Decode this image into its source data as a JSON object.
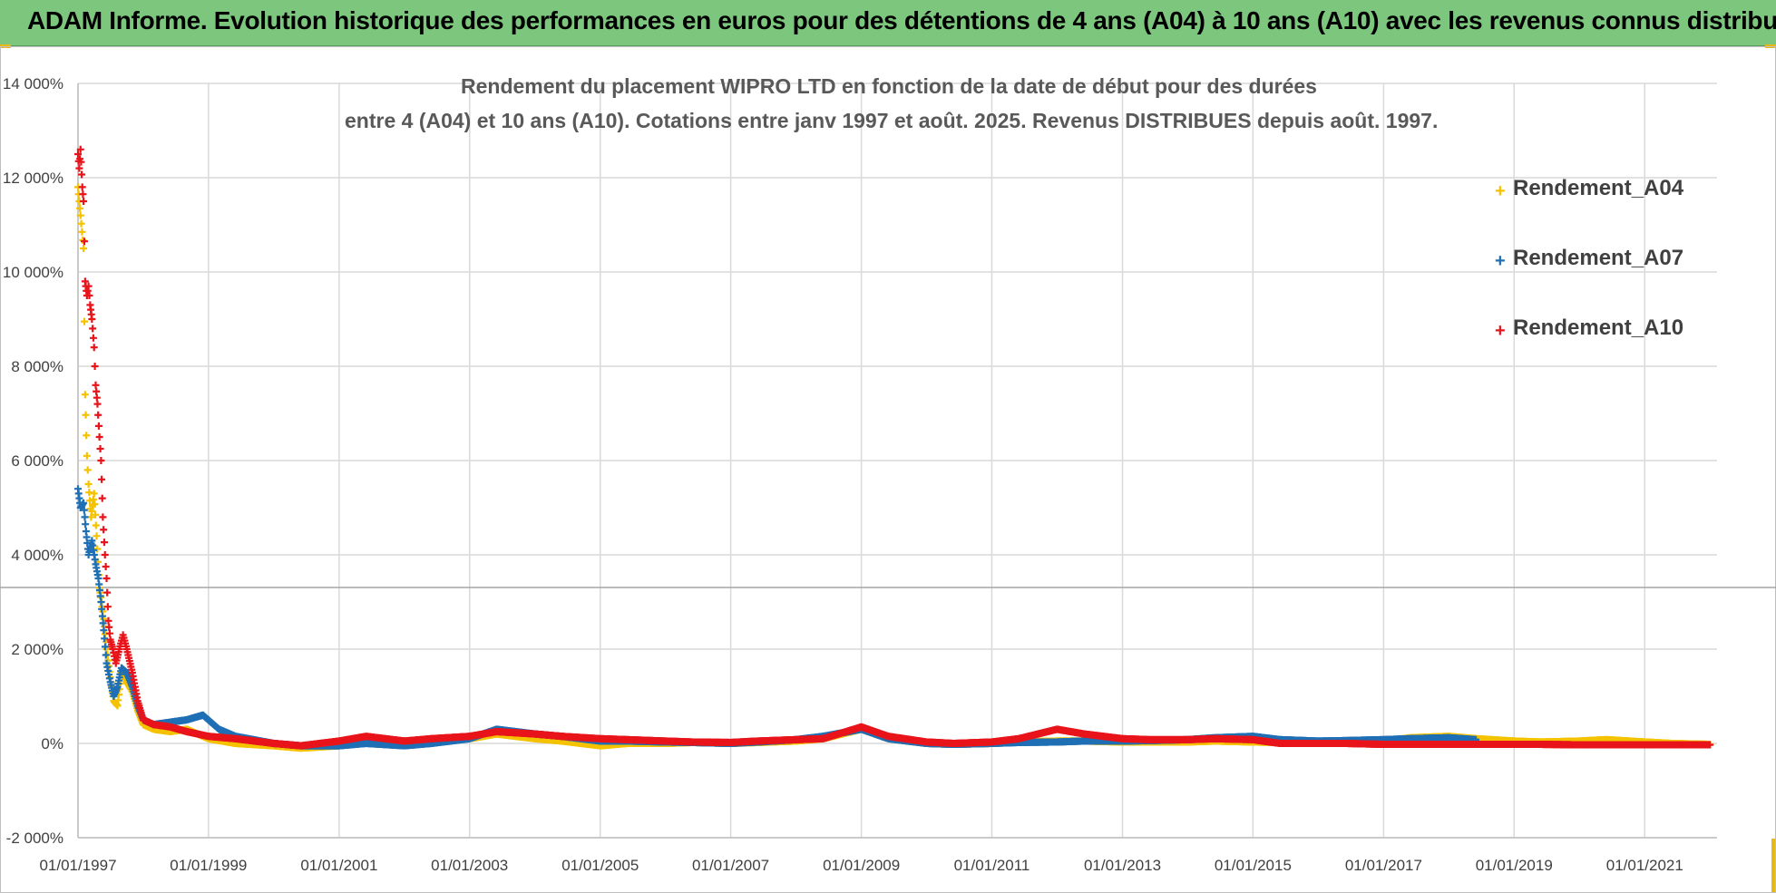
{
  "banner": {
    "title": "ADAM Informe. Evolution historique des performances en euros pour des détentions de 4 ans (A04) à 10 ans (A10) avec les revenus connus distribués"
  },
  "colors": {
    "banner_bg": "#7dc67e",
    "series_A04": "#f5c200",
    "series_A07": "#1f6fb5",
    "series_A10": "#e8141b",
    "grid": "#d9d9d9"
  },
  "chart_data": {
    "type": "scatter",
    "title_line1": "Rendement du placement WIPRO LTD en fonction de la date de début pour des durées",
    "title_line2": "entre 4 (A04) et 10 ans (A10).  Cotations entre janv 1997 et août. 2025. Revenus DISTRIBUES depuis août. 1997.",
    "xlabel": "",
    "ylabel": "",
    "xlim": [
      "1997-01-01",
      "2022-01-01"
    ],
    "ylim": [
      -2000,
      14000
    ],
    "y_ticks": [
      -2000,
      0,
      2000,
      4000,
      6000,
      8000,
      10000,
      12000,
      14000
    ],
    "y_tick_labels": [
      "-2 000%",
      "0%",
      "2 000%",
      "4 000%",
      "6 000%",
      "8 000%",
      "10 000%",
      "12 000%",
      "14 000%"
    ],
    "x_tick_labels": [
      "01/01/1997",
      "01/01/1999",
      "01/01/2001",
      "01/01/2003",
      "01/01/2005",
      "01/01/2007",
      "01/01/2009",
      "01/01/2011",
      "01/01/2013",
      "01/01/2015",
      "01/01/2017",
      "01/01/2019",
      "01/01/2021"
    ],
    "grid": true,
    "legend_position": "top-right",
    "series": [
      {
        "name": "Rendement_A04",
        "color": "#f5c200",
        "points": [
          [
            "1997-01-01",
            11800
          ],
          [
            "1997-01-15",
            11200
          ],
          [
            "1997-02-01",
            10500
          ],
          [
            "1997-02-10",
            7400
          ],
          [
            "1997-02-20",
            6100
          ],
          [
            "1997-03-01",
            5500
          ],
          [
            "1997-03-15",
            4800
          ],
          [
            "1997-04-01",
            5300
          ],
          [
            "1997-04-15",
            4400
          ],
          [
            "1997-05-01",
            3300
          ],
          [
            "1997-05-20",
            2800
          ],
          [
            "1997-06-10",
            2000
          ],
          [
            "1997-07-01",
            1400
          ],
          [
            "1997-07-20",
            900
          ],
          [
            "1997-08-10",
            800
          ],
          [
            "1997-09-01",
            1500
          ],
          [
            "1997-10-01",
            1300
          ],
          [
            "1997-11-01",
            1100
          ],
          [
            "1997-12-01",
            700
          ],
          [
            "1998-01-01",
            400
          ],
          [
            "1998-03-01",
            300
          ],
          [
            "1998-06-01",
            250
          ],
          [
            "1998-09-01",
            300
          ],
          [
            "1999-01-01",
            100
          ],
          [
            "1999-06-01",
            0
          ],
          [
            "2000-01-01",
            -50
          ],
          [
            "2000-06-01",
            -100
          ],
          [
            "2001-01-01",
            -50
          ],
          [
            "2001-06-01",
            50
          ],
          [
            "2002-01-01",
            0
          ],
          [
            "2002-06-01",
            50
          ],
          [
            "2003-01-01",
            100
          ],
          [
            "2003-06-01",
            200
          ],
          [
            "2004-01-01",
            100
          ],
          [
            "2004-06-01",
            50
          ],
          [
            "2005-01-01",
            -50
          ],
          [
            "2005-06-01",
            0
          ],
          [
            "2006-01-01",
            0
          ],
          [
            "2006-06-01",
            20
          ],
          [
            "2007-01-01",
            0
          ],
          [
            "2007-06-01",
            20
          ],
          [
            "2008-01-01",
            50
          ],
          [
            "2008-06-01",
            100
          ],
          [
            "2009-01-01",
            300
          ],
          [
            "2009-06-01",
            100
          ],
          [
            "2010-01-01",
            0
          ],
          [
            "2010-06-01",
            -20
          ],
          [
            "2011-01-01",
            0
          ],
          [
            "2011-06-01",
            30
          ],
          [
            "2012-01-01",
            50
          ],
          [
            "2012-06-01",
            50
          ],
          [
            "2013-01-01",
            30
          ],
          [
            "2013-06-01",
            30
          ],
          [
            "2014-01-01",
            30
          ],
          [
            "2014-06-01",
            50
          ],
          [
            "2015-01-01",
            30
          ],
          [
            "2015-06-01",
            20
          ],
          [
            "2016-01-01",
            20
          ],
          [
            "2016-06-01",
            30
          ],
          [
            "2017-01-01",
            50
          ],
          [
            "2017-06-01",
            120
          ],
          [
            "2018-01-01",
            150
          ],
          [
            "2018-06-01",
            100
          ],
          [
            "2019-01-01",
            50
          ],
          [
            "2019-06-01",
            30
          ],
          [
            "2020-01-01",
            50
          ],
          [
            "2020-06-01",
            80
          ],
          [
            "2021-01-01",
            30
          ],
          [
            "2021-06-01",
            0
          ],
          [
            "2022-01-01",
            -20
          ]
        ]
      },
      {
        "name": "Rendement_A07",
        "color": "#1f6fb5",
        "points": [
          [
            "1997-01-01",
            5400
          ],
          [
            "1997-01-15",
            5000
          ],
          [
            "1997-02-01",
            5100
          ],
          [
            "1997-02-15",
            4500
          ],
          [
            "1997-03-01",
            4000
          ],
          [
            "1997-03-20",
            4300
          ],
          [
            "1997-04-10",
            3800
          ],
          [
            "1997-04-25",
            3500
          ],
          [
            "1997-05-10",
            3000
          ],
          [
            "1997-05-25",
            2400
          ],
          [
            "1997-06-10",
            1700
          ],
          [
            "1997-07-01",
            1300
          ],
          [
            "1997-07-20",
            1000
          ],
          [
            "1997-08-10",
            1200
          ],
          [
            "1997-09-01",
            1600
          ],
          [
            "1997-10-01",
            1500
          ],
          [
            "1997-11-01",
            1200
          ],
          [
            "1997-12-01",
            800
          ],
          [
            "1998-01-01",
            500
          ],
          [
            "1998-03-01",
            400
          ],
          [
            "1998-06-01",
            450
          ],
          [
            "1998-09-01",
            500
          ],
          [
            "1998-12-01",
            600
          ],
          [
            "1999-03-01",
            300
          ],
          [
            "1999-06-01",
            150
          ],
          [
            "2000-01-01",
            0
          ],
          [
            "2000-06-01",
            -50
          ],
          [
            "2001-01-01",
            -50
          ],
          [
            "2001-06-01",
            0
          ],
          [
            "2002-01-01",
            -50
          ],
          [
            "2002-06-01",
            0
          ],
          [
            "2003-01-01",
            100
          ],
          [
            "2003-06-01",
            300
          ],
          [
            "2004-01-01",
            200
          ],
          [
            "2004-06-01",
            150
          ],
          [
            "2005-01-01",
            50
          ],
          [
            "2005-06-01",
            50
          ],
          [
            "2006-01-01",
            30
          ],
          [
            "2006-06-01",
            20
          ],
          [
            "2007-01-01",
            0
          ],
          [
            "2007-06-01",
            30
          ],
          [
            "2008-01-01",
            80
          ],
          [
            "2008-06-01",
            150
          ],
          [
            "2009-01-01",
            300
          ],
          [
            "2009-06-01",
            100
          ],
          [
            "2010-01-01",
            0
          ],
          [
            "2010-06-01",
            -20
          ],
          [
            "2011-01-01",
            0
          ],
          [
            "2011-06-01",
            20
          ],
          [
            "2012-01-01",
            30
          ],
          [
            "2012-06-01",
            50
          ],
          [
            "2013-01-01",
            50
          ],
          [
            "2013-06-01",
            60
          ],
          [
            "2014-01-01",
            80
          ],
          [
            "2014-06-01",
            120
          ],
          [
            "2015-01-01",
            150
          ],
          [
            "2015-06-01",
            80
          ],
          [
            "2016-01-01",
            50
          ],
          [
            "2016-06-01",
            60
          ],
          [
            "2017-01-01",
            80
          ],
          [
            "2017-06-01",
            100
          ],
          [
            "2018-01-01",
            120
          ],
          [
            "2018-06-01",
            80
          ]
        ]
      },
      {
        "name": "Rendement_A10",
        "color": "#e8141b",
        "points": [
          [
            "1997-01-01",
            12500
          ],
          [
            "1997-01-08",
            12200
          ],
          [
            "1997-01-15",
            12600
          ],
          [
            "1997-01-25",
            11800
          ],
          [
            "1997-02-01",
            11500
          ],
          [
            "1997-02-10",
            9800
          ],
          [
            "1997-02-20",
            9500
          ],
          [
            "1997-03-01",
            9700
          ],
          [
            "1997-03-10",
            9300
          ],
          [
            "1997-03-20",
            9000
          ],
          [
            "1997-04-01",
            8400
          ],
          [
            "1997-04-10",
            7600
          ],
          [
            "1997-04-20",
            7200
          ],
          [
            "1997-05-01",
            6500
          ],
          [
            "1997-05-10",
            6000
          ],
          [
            "1997-05-20",
            4800
          ],
          [
            "1997-06-01",
            4000
          ],
          [
            "1997-06-10",
            3500
          ],
          [
            "1997-06-20",
            2600
          ],
          [
            "1997-07-01",
            2200
          ],
          [
            "1997-07-15",
            2000
          ],
          [
            "1997-08-01",
            1700
          ],
          [
            "1997-08-20",
            2000
          ],
          [
            "1997-09-10",
            2300
          ],
          [
            "1997-10-01",
            2000
          ],
          [
            "1997-11-01",
            1500
          ],
          [
            "1997-12-01",
            900
          ],
          [
            "1998-01-01",
            500
          ],
          [
            "1998-03-01",
            400
          ],
          [
            "1998-06-01",
            350
          ],
          [
            "1998-09-01",
            250
          ],
          [
            "1999-01-01",
            150
          ],
          [
            "1999-06-01",
            100
          ],
          [
            "2000-01-01",
            0
          ],
          [
            "2000-06-01",
            -50
          ],
          [
            "2001-01-01",
            50
          ],
          [
            "2001-06-01",
            150
          ],
          [
            "2002-01-01",
            50
          ],
          [
            "2002-06-01",
            100
          ],
          [
            "2003-01-01",
            150
          ],
          [
            "2003-06-01",
            250
          ],
          [
            "2004-01-01",
            200
          ],
          [
            "2004-06-01",
            150
          ],
          [
            "2005-01-01",
            100
          ],
          [
            "2005-06-01",
            80
          ],
          [
            "2006-01-01",
            50
          ],
          [
            "2006-06-01",
            30
          ],
          [
            "2007-01-01",
            20
          ],
          [
            "2007-06-01",
            50
          ],
          [
            "2008-01-01",
            80
          ],
          [
            "2008-06-01",
            100
          ],
          [
            "2009-01-01",
            350
          ],
          [
            "2009-06-01",
            150
          ],
          [
            "2010-01-01",
            30
          ],
          [
            "2010-06-01",
            0
          ],
          [
            "2011-01-01",
            30
          ],
          [
            "2011-06-01",
            100
          ],
          [
            "2012-01-01",
            300
          ],
          [
            "2012-06-01",
            200
          ],
          [
            "2013-01-01",
            100
          ],
          [
            "2013-06-01",
            80
          ],
          [
            "2014-01-01",
            80
          ],
          [
            "2014-06-01",
            100
          ],
          [
            "2015-01-01",
            80
          ],
          [
            "2015-06-01",
            0
          ],
          [
            "2016-01-01",
            0
          ],
          [
            "2016-06-01",
            0
          ],
          [
            "2017-01-01",
            -20
          ],
          [
            "2017-06-01",
            -20
          ],
          [
            "2018-01-01",
            -20
          ],
          [
            "2018-06-01",
            -20
          ],
          [
            "2019-01-01",
            -20
          ],
          [
            "2019-06-01",
            -20
          ],
          [
            "2020-01-01",
            -30
          ],
          [
            "2020-06-01",
            -30
          ],
          [
            "2021-01-01",
            -30
          ],
          [
            "2021-06-01",
            -30
          ],
          [
            "2022-01-01",
            -30
          ]
        ]
      }
    ]
  }
}
